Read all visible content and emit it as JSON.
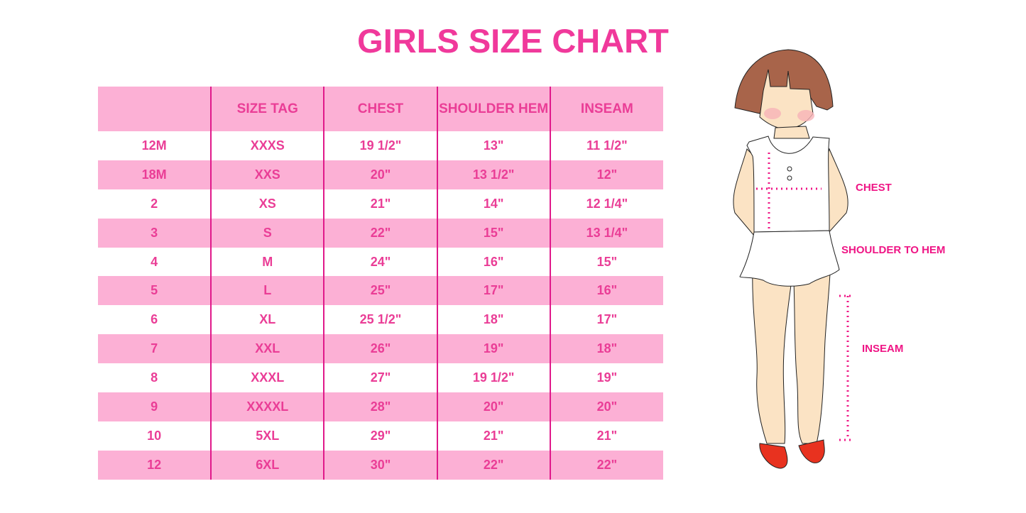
{
  "title": "GIRLS SIZE CHART",
  "table": {
    "headers": [
      "",
      "SIZE TAG",
      "CHEST",
      "SHOULDER HEM",
      "INSEAM"
    ],
    "rows": [
      [
        "12M",
        "XXXS",
        "19 1/2\"",
        "13\"",
        "11 1/2\""
      ],
      [
        "18M",
        "XXS",
        "20\"",
        "13 1/2\"",
        "12\""
      ],
      [
        "2",
        "XS",
        "21\"",
        "14\"",
        "12 1/4\""
      ],
      [
        "3",
        "S",
        "22\"",
        "15\"",
        "13 1/4\""
      ],
      [
        "4",
        "M",
        "24\"",
        "16\"",
        "15\""
      ],
      [
        "5",
        "L",
        "25\"",
        "17\"",
        "16\""
      ],
      [
        "6",
        "XL",
        "25 1/2\"",
        "18\"",
        "17\""
      ],
      [
        "7",
        "XXL",
        "26\"",
        "19\"",
        "18\""
      ],
      [
        "8",
        "XXXL",
        "27\"",
        "19 1/2\"",
        "19\""
      ],
      [
        "9",
        "XXXXL",
        "28\"",
        "20\"",
        "20\""
      ],
      [
        "10",
        "5XL",
        "29\"",
        "21\"",
        "21\""
      ],
      [
        "12",
        "6XL",
        "30\"",
        "22\"",
        "22\""
      ]
    ]
  },
  "figure": {
    "labels": {
      "chest": "CHEST",
      "shoulder_to_hem": "SHOULDER TO HEM",
      "inseam": "INSEAM"
    }
  },
  "colors": {
    "accent": "#f0399b",
    "row_pink": "#fcb0d5",
    "divider": "#e0198a"
  }
}
